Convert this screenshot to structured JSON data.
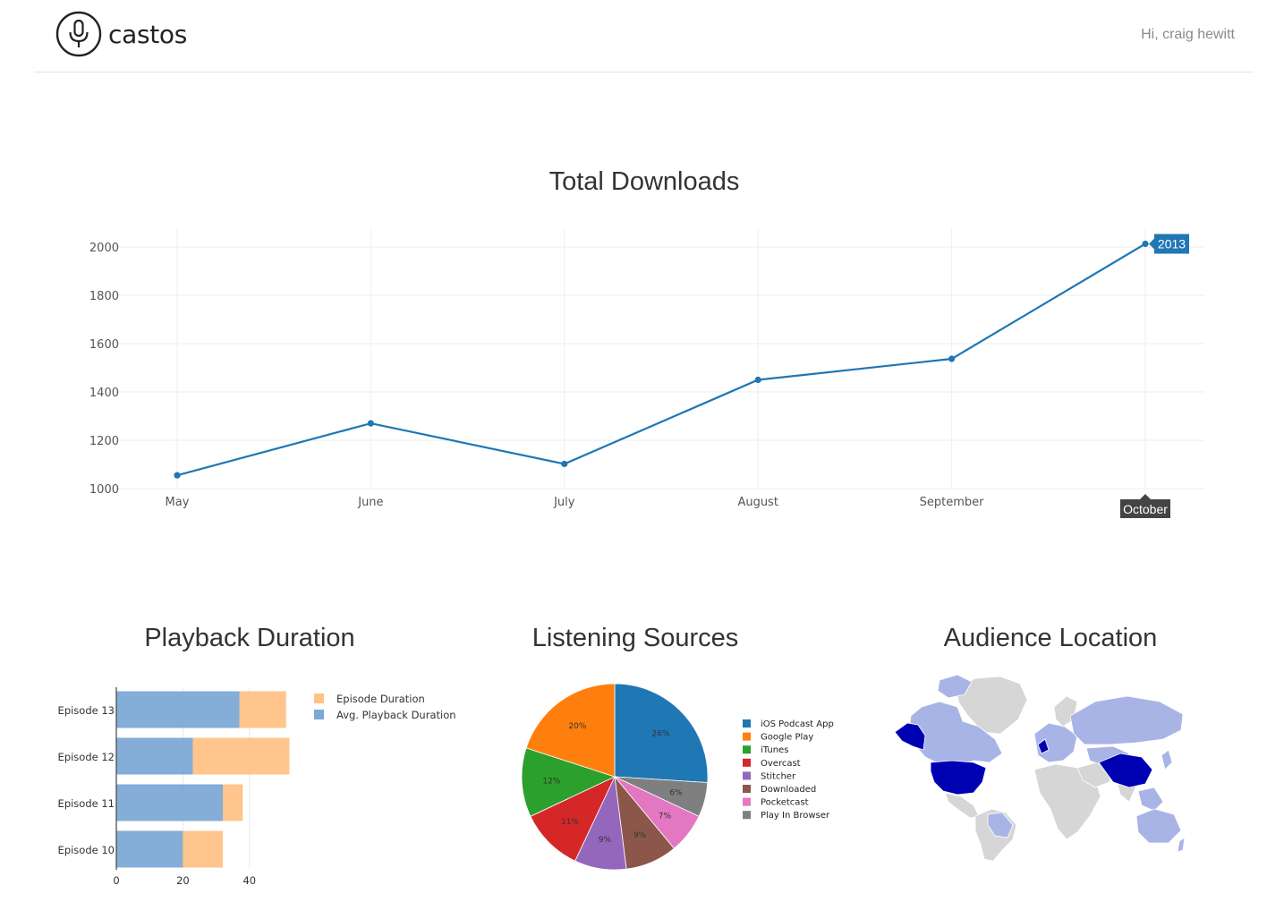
{
  "app": {
    "brand": "castos",
    "greeting": "Hi, craig hewitt"
  },
  "colors": {
    "line": "#1f77b4",
    "grid": "#eeeeee",
    "episode_duration": "#ffbb78",
    "avg_playback": "#6f9fd0",
    "highlight_country": "#0000b3",
    "other_country": "#a9b4e6",
    "no_data_country": "#d6d6d6"
  },
  "chart_data": [
    {
      "type": "line",
      "title": "Total Downloads",
      "categories": [
        "May",
        "June",
        "July",
        "August",
        "September",
        "October"
      ],
      "series": [
        {
          "values": [
            1055,
            1270,
            1102,
            1450,
            1537,
            2013
          ]
        }
      ],
      "ylim": [
        1000,
        2000
      ],
      "yticks": [
        1000,
        1200,
        1400,
        1600,
        1800,
        2000
      ],
      "grid": true,
      "hover": {
        "category": "October",
        "value": "2013"
      }
    },
    {
      "type": "bar",
      "orientation": "horizontal",
      "stacked": true,
      "title": "Playback Duration",
      "categories": [
        "Episode 13",
        "Episode 12",
        "Episode 11",
        "Episode 10"
      ],
      "series": [
        {
          "name": "Avg. Playback Duration",
          "values": [
            37,
            23,
            32,
            20
          ]
        },
        {
          "name": "Episode Duration",
          "values": [
            14,
            29,
            6,
            12
          ]
        }
      ],
      "legend": [
        "Episode Duration",
        "Avg. Playback Duration"
      ],
      "xticks": [
        0,
        20,
        40
      ],
      "legend_position": "right"
    },
    {
      "type": "pie",
      "title": "Listening Sources",
      "slices": [
        {
          "label": "iOS Podcast App",
          "value": 26,
          "text": "26%",
          "color": "#1f77b4"
        },
        {
          "label": "Play In Browser",
          "value": 6,
          "text": "6%",
          "color": "#7f7f7f"
        },
        {
          "label": "Pocketcast",
          "value": 7,
          "text": "7%",
          "color": "#e377c2"
        },
        {
          "label": "Downloaded",
          "value": 9,
          "text": "9%",
          "color": "#8c564b"
        },
        {
          "label": "Stitcher",
          "value": 9,
          "text": "9%",
          "color": "#9467bd"
        },
        {
          "label": "Overcast",
          "value": 11,
          "text": "11%",
          "color": "#d62728"
        },
        {
          "label": "iTunes",
          "value": 12,
          "text": "12%",
          "color": "#2ca02c"
        },
        {
          "label": "Google Play",
          "value": 20,
          "text": "20%",
          "color": "#ff7f0e"
        }
      ],
      "legend": [
        "iOS Podcast App",
        "Google Play",
        "iTunes",
        "Overcast",
        "Stitcher",
        "Downloaded",
        "Pocketcast",
        "Play In Browser"
      ],
      "legend_position": "right"
    }
  ],
  "map": {
    "title": "Audience Location"
  }
}
